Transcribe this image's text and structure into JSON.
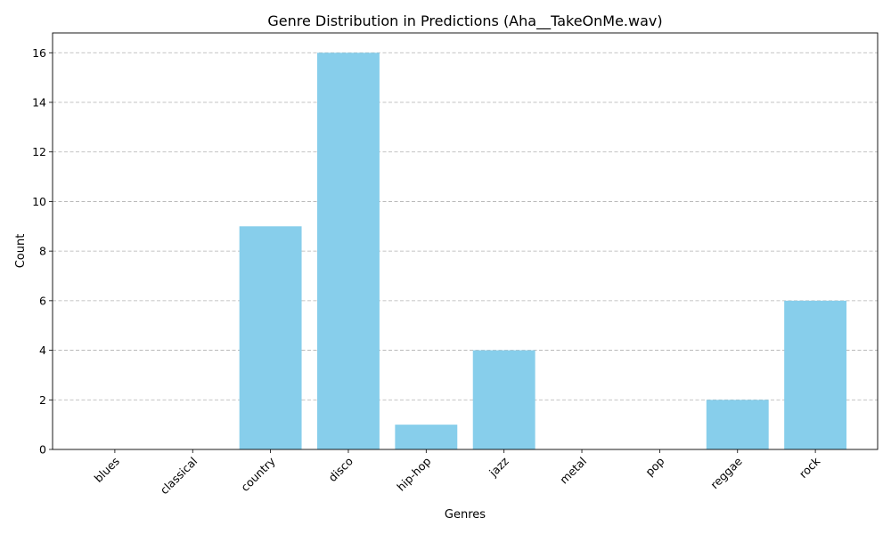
{
  "chart_data": {
    "type": "bar",
    "title": "Genre Distribution in Predictions (Aha__TakeOnMe.wav)",
    "xlabel": "Genres",
    "ylabel": "Count",
    "categories": [
      "blues",
      "classical",
      "country",
      "disco",
      "hip-hop",
      "jazz",
      "metal",
      "pop",
      "reggae",
      "rock"
    ],
    "values": [
      0,
      0,
      9,
      16,
      1,
      4,
      0,
      0,
      2,
      6
    ],
    "ylim": [
      0,
      16.8
    ],
    "yticks": [
      0,
      2,
      4,
      6,
      8,
      10,
      12,
      14,
      16
    ],
    "grid": "y-dashed",
    "bar_color": "#87ceeb",
    "x_tick_rotation": 45
  }
}
